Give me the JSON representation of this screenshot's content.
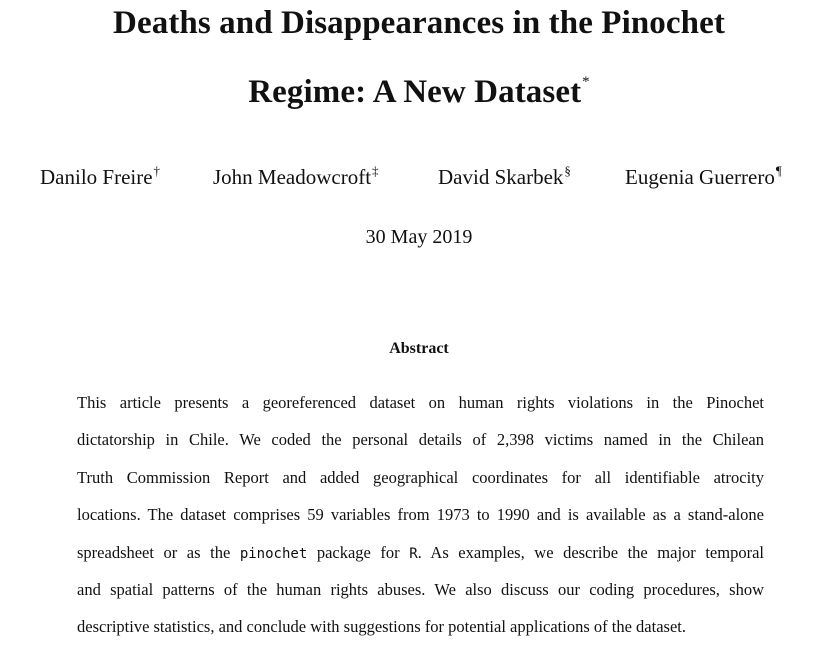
{
  "title": {
    "line1": "Deaths and Disappearances in the Pinochet",
    "line2": "Regime: A New Dataset",
    "footnote_mark": "*"
  },
  "authors": [
    {
      "name": "Danilo Freire",
      "mark": "†"
    },
    {
      "name": "John Meadowcroft",
      "mark": "‡"
    },
    {
      "name": "David Skarbek",
      "mark": "§"
    },
    {
      "name": "Eugenia Guerrero",
      "mark": "¶"
    }
  ],
  "date": "30 May 2019",
  "abstract": {
    "heading": "Abstract",
    "lines": [
      "This article presents a georeferenced dataset on human rights violations in the Pinochet",
      "dictatorship in Chile. We coded the personal details of 2,398 victims named in the Chilean",
      "Truth Commission Report and added geographical coordinates for all identifiable atrocity",
      "locations. The dataset comprises 59 variables from 1973 to 1990 and is available as a stand-alone"
    ],
    "line5": {
      "before": "spreadsheet or as the ",
      "package_name": "pinochet",
      "middle": " package for ",
      "language": "R",
      "after": ". As examples, we describe the major temporal"
    },
    "lines_end": [
      "and spatial patterns of the human rights abuses. We also discuss our coding procedures, show",
      "descriptive statistics, and conclude with suggestions for potential applications of the dataset."
    ]
  }
}
